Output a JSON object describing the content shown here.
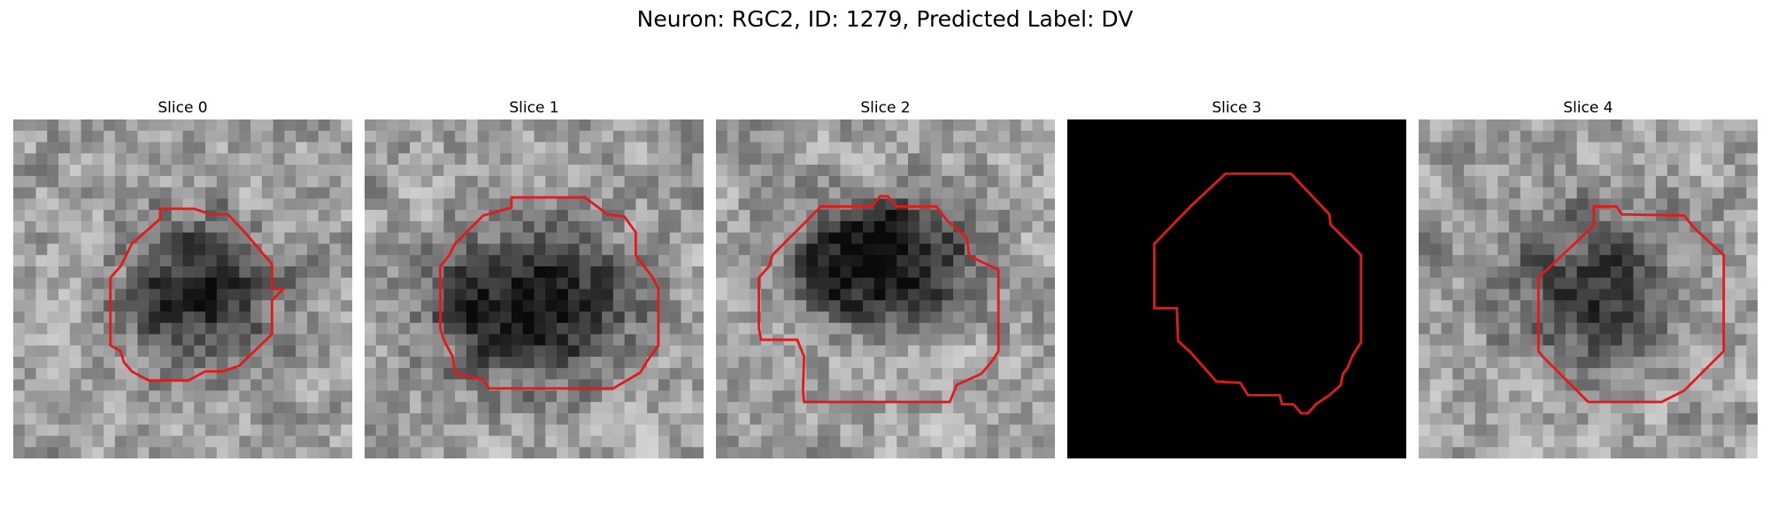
{
  "figure": {
    "title": "Neuron: RGC2, ID: 1279, Predicted Label: DV"
  },
  "panels": [
    {
      "title": "Slice 0",
      "image": "noisy grayscale microscopy patch with dark cell body"
    },
    {
      "title": "Slice 1",
      "image": "noisy grayscale microscopy patch with dark cell body"
    },
    {
      "title": "Slice 2",
      "image": "noisy grayscale microscopy patch with dark cell body"
    },
    {
      "title": "Slice 3",
      "image": "uniform black patch"
    },
    {
      "title": "Slice 4",
      "image": "noisy grayscale microscopy patch with dark cell body"
    }
  ],
  "colors": {
    "outline": "#e31a1c",
    "background": "#ffffff"
  }
}
